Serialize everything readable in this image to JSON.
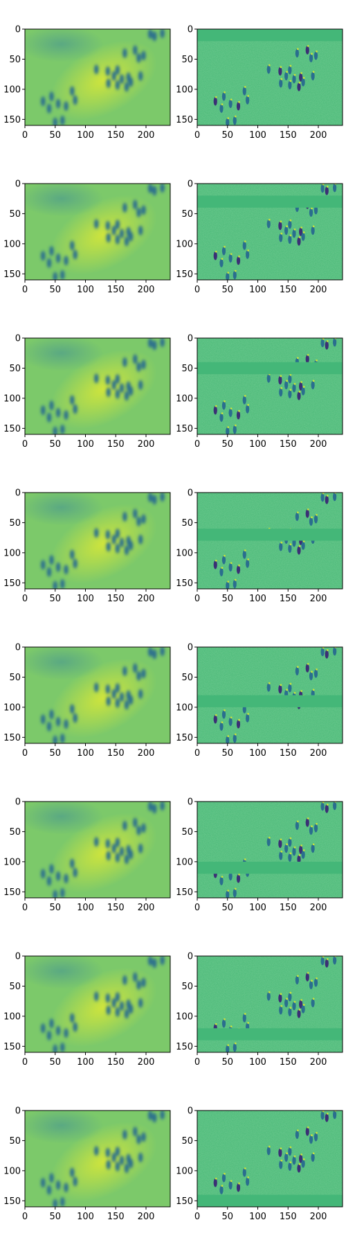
{
  "figure": {
    "rows": 8,
    "cols": 2,
    "colormap": "viridis",
    "image_size": {
      "width": 240,
      "height": 160
    },
    "x_ticks": [
      0,
      50,
      100,
      150,
      200
    ],
    "y_ticks": [
      0,
      50,
      100,
      150
    ],
    "panels": [
      {
        "row": 1,
        "col": 1,
        "kind": "blurred",
        "band_y": [
          0,
          0
        ]
      },
      {
        "row": 1,
        "col": 2,
        "kind": "residual",
        "band_y": [
          0,
          20
        ]
      },
      {
        "row": 2,
        "col": 1,
        "kind": "blurred",
        "band_y": [
          0,
          0
        ]
      },
      {
        "row": 2,
        "col": 2,
        "kind": "residual",
        "band_y": [
          20,
          40
        ]
      },
      {
        "row": 3,
        "col": 1,
        "kind": "blurred",
        "band_y": [
          0,
          0
        ]
      },
      {
        "row": 3,
        "col": 2,
        "kind": "residual",
        "band_y": [
          40,
          60
        ]
      },
      {
        "row": 4,
        "col": 1,
        "kind": "blurred",
        "band_y": [
          0,
          0
        ]
      },
      {
        "row": 4,
        "col": 2,
        "kind": "residual",
        "band_y": [
          60,
          80
        ]
      },
      {
        "row": 5,
        "col": 1,
        "kind": "blurred",
        "band_y": [
          0,
          0
        ]
      },
      {
        "row": 5,
        "col": 2,
        "kind": "residual",
        "band_y": [
          80,
          100
        ]
      },
      {
        "row": 6,
        "col": 1,
        "kind": "blurred",
        "band_y": [
          0,
          0
        ]
      },
      {
        "row": 6,
        "col": 2,
        "kind": "residual",
        "band_y": [
          100,
          120
        ]
      },
      {
        "row": 7,
        "col": 1,
        "kind": "blurred",
        "band_y": [
          0,
          0
        ]
      },
      {
        "row": 7,
        "col": 2,
        "kind": "residual",
        "band_y": [
          120,
          140
        ]
      },
      {
        "row": 8,
        "col": 1,
        "kind": "blurred",
        "band_y": [
          0,
          0
        ]
      },
      {
        "row": 8,
        "col": 2,
        "kind": "residual",
        "band_y": [
          140,
          160
        ]
      }
    ],
    "people": [
      [
        137,
        70
      ],
      [
        147,
        78
      ],
      [
        153,
        68
      ],
      [
        160,
        83
      ],
      [
        171,
        80
      ],
      [
        191,
        78
      ],
      [
        138,
        90
      ],
      [
        153,
        93
      ],
      [
        168,
        96
      ],
      [
        175,
        88
      ],
      [
        78,
        103
      ],
      [
        83,
        118
      ],
      [
        68,
        128
      ],
      [
        55,
        124
      ],
      [
        40,
        132
      ],
      [
        44,
        112
      ],
      [
        30,
        120
      ],
      [
        50,
        155
      ],
      [
        62,
        152
      ],
      [
        165,
        40
      ],
      [
        182,
        35
      ],
      [
        196,
        44
      ],
      [
        188,
        48
      ],
      [
        207,
        8
      ],
      [
        214,
        12
      ],
      [
        227,
        7
      ],
      [
        118,
        67
      ]
    ],
    "colors": {
      "background": "#7cc96a",
      "bright": "#c8e23e",
      "dark": "#2a6e8e",
      "darkest": "#3b2f75",
      "residual_bg": "#4ebb7a",
      "residual_flat": "#44b778"
    }
  }
}
